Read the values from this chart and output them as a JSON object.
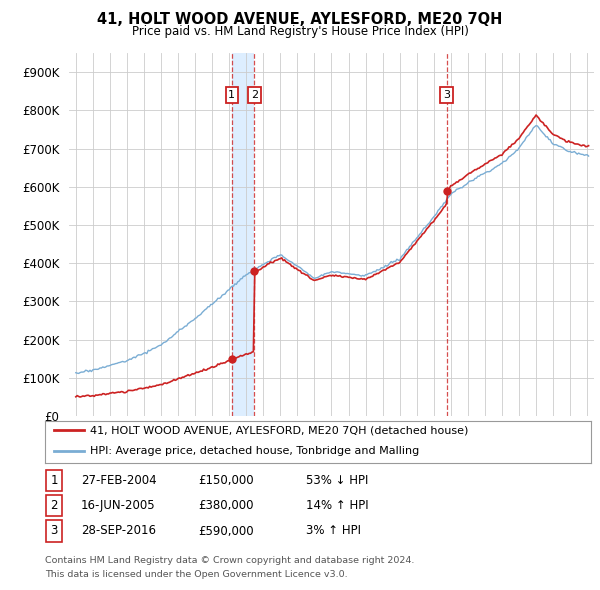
{
  "title": "41, HOLT WOOD AVENUE, AYLESFORD, ME20 7QH",
  "subtitle": "Price paid vs. HM Land Registry's House Price Index (HPI)",
  "legend_line1": "41, HOLT WOOD AVENUE, AYLESFORD, ME20 7QH (detached house)",
  "legend_line2": "HPI: Average price, detached house, Tonbridge and Malling",
  "footer1": "Contains HM Land Registry data © Crown copyright and database right 2024.",
  "footer2": "This data is licensed under the Open Government Licence v3.0.",
  "transactions": [
    {
      "num": "1",
      "date": "27-FEB-2004",
      "price": 150000,
      "hpi_note": "53% ↓ HPI",
      "year": 2004.15
    },
    {
      "num": "2",
      "date": "16-JUN-2005",
      "price": 380000,
      "hpi_note": "14% ↑ HPI",
      "year": 2005.47
    },
    {
      "num": "3",
      "date": "28-SEP-2016",
      "price": 590000,
      "hpi_note": "3% ↑ HPI",
      "year": 2016.75
    }
  ],
  "hpi_color": "#7aadd4",
  "price_color": "#cc2222",
  "vline_color": "#cc2222",
  "background_chart": "#ffffff",
  "band_color": "#ddeeff",
  "ylim": [
    0,
    950000
  ],
  "yticks": [
    0,
    100000,
    200000,
    300000,
    400000,
    500000,
    600000,
    700000,
    800000,
    900000
  ],
  "xlim_start": 1994.6,
  "xlim_end": 2025.4
}
